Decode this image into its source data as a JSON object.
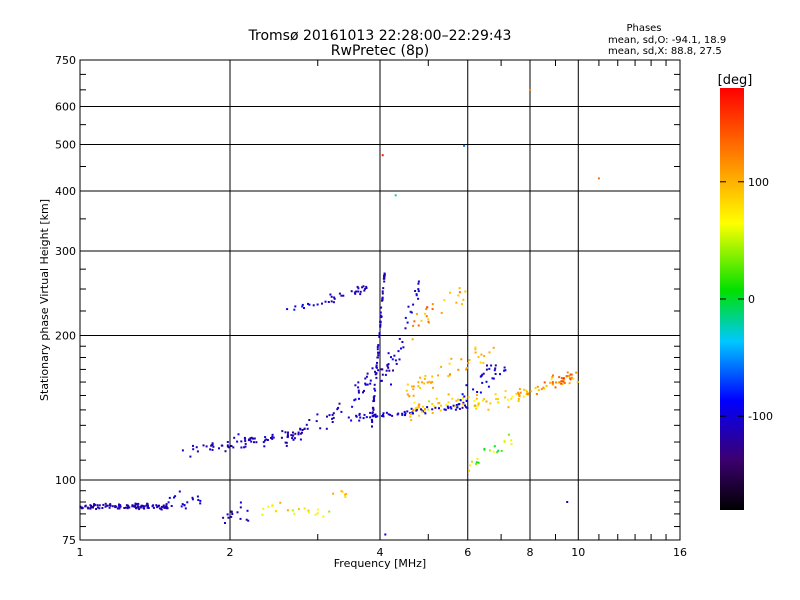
{
  "chart_data": {
    "type": "scatter",
    "title": "Tromsø 20161013 22:28:00–22:29:43",
    "subtitle": "RwPretec (8p)",
    "xlabel": "Frequency [MHz]",
    "ylabel": "Stationary phase Virtual Height [km]",
    "x_scale": "log",
    "y_scale": "log",
    "xlim": [
      1,
      16
    ],
    "ylim": [
      75,
      750
    ],
    "x_ticks": [
      1,
      2,
      4,
      6,
      8,
      10,
      16
    ],
    "x_tick_labels": [
      "1",
      "2",
      "4",
      "6",
      "8",
      "10",
      "16"
    ],
    "y_ticks": [
      75,
      100,
      200,
      300,
      400,
      500,
      600,
      750
    ],
    "y_tick_labels": [
      "75",
      "100",
      "200",
      "300",
      "400",
      "500",
      "600",
      "750"
    ],
    "grid": true,
    "stats": {
      "heading": "Phases",
      "line_o": "mean, sd,O: -94.1, 18.9",
      "line_x": "mean, sd,X:  88.8, 27.5"
    },
    "colorbar": {
      "label": "[deg]",
      "range": [
        -180,
        180
      ],
      "ticks": [
        100,
        0,
        -100
      ],
      "tick_labels": [
        "100",
        "0",
        "-100"
      ]
    },
    "clusters": [
      {
        "f_start": 1.0,
        "f_end": 1.5,
        "h": 88,
        "jitter": 0.012,
        "phase": -115,
        "phase_sd": 10,
        "n": 110
      },
      {
        "f_start": 1.5,
        "f_end": 1.75,
        "h": 90,
        "jitter": 0.03,
        "phase": -100,
        "phase_sd": 15,
        "n": 18
      },
      {
        "f_start": 1.9,
        "f_end": 2.2,
        "h": 86,
        "jitter": 0.04,
        "phase": -110,
        "phase_sd": 15,
        "n": 15
      },
      {
        "f_start": 2.3,
        "f_end": 3.2,
        "h": 87,
        "jitter": 0.035,
        "phase": 80,
        "phase_sd": 40,
        "n": 20
      },
      {
        "f_start": 3.2,
        "f_end": 3.6,
        "h": 93,
        "jitter": 0.02,
        "phase": 90,
        "phase_sd": 25,
        "n": 6
      },
      {
        "f_start": 1.6,
        "f_end": 2.8,
        "h": 115,
        "h_end": 125,
        "jitter": 0.03,
        "phase": -110,
        "phase_sd": 14,
        "n": 75
      },
      {
        "f_start": 2.6,
        "f_end": 3.4,
        "h": 124,
        "h_end": 138,
        "jitter": 0.04,
        "phase": -110,
        "phase_sd": 15,
        "n": 30
      },
      {
        "f_start": 3.4,
        "f_end": 6.0,
        "h": 134,
        "h_end": 143,
        "jitter": 0.015,
        "phase": -105,
        "phase_sd": 14,
        "n": 70
      },
      {
        "f_start": 4.6,
        "f_end": 8.0,
        "h": 140,
        "h_end": 150,
        "jitter": 0.035,
        "phase": 90,
        "phase_sd": 30,
        "n": 70
      },
      {
        "f_start": 7.5,
        "f_end": 10.0,
        "h": 150,
        "h_end": 165,
        "jitter": 0.03,
        "phase": 110,
        "phase_sd": 30,
        "n": 40
      },
      {
        "f_start": 9.0,
        "f_end": 10.3,
        "h": 158,
        "h_end": 172,
        "jitter": 0.02,
        "phase": 140,
        "phase_sd": 20,
        "n": 15
      },
      {
        "f_start": 2.6,
        "f_end": 3.2,
        "h": 228,
        "h_end": 235,
        "jitter": 0.01,
        "phase": -100,
        "phase_sd": 20,
        "n": 12
      },
      {
        "f_start": 3.1,
        "f_end": 3.8,
        "h": 235,
        "h_end": 252,
        "jitter": 0.02,
        "phase": -110,
        "phase_sd": 15,
        "n": 25
      },
      {
        "f_start": 3.85,
        "f_end": 4.1,
        "h": 130,
        "h_end": 280,
        "jitter": 0.03,
        "phase": -110,
        "phase_sd": 15,
        "n": 70
      },
      {
        "f_start": 3.5,
        "f_end": 4.4,
        "h": 150,
        "h_end": 180,
        "jitter": 0.05,
        "phase": -110,
        "phase_sd": 18,
        "n": 40
      },
      {
        "f_start": 4.2,
        "f_end": 4.8,
        "h": 160,
        "h_end": 260,
        "jitter": 0.06,
        "phase": -100,
        "phase_sd": 20,
        "n": 25
      },
      {
        "f_start": 4.5,
        "f_end": 6.8,
        "h": 150,
        "h_end": 190,
        "jitter": 0.05,
        "phase": 100,
        "phase_sd": 20,
        "n": 45
      },
      {
        "f_start": 4.6,
        "f_end": 6.2,
        "h": 210,
        "h_end": 255,
        "jitter": 0.05,
        "phase": 110,
        "phase_sd": 30,
        "n": 25
      },
      {
        "f_start": 5.8,
        "f_end": 7.2,
        "h": 150,
        "h_end": 175,
        "jitter": 0.06,
        "phase": -105,
        "phase_sd": 20,
        "n": 30
      },
      {
        "f_start": 6.0,
        "f_end": 7.5,
        "h": 105,
        "h_end": 125,
        "jitter": 0.05,
        "phase": 30,
        "phase_sd": 50,
        "n": 20
      }
    ],
    "outliers": [
      {
        "f": 4.05,
        "h": 475,
        "phase": 170
      },
      {
        "f": 4.3,
        "h": 392,
        "phase": -20
      },
      {
        "f": 5.9,
        "h": 497,
        "phase": -60
      },
      {
        "f": 8.0,
        "h": 650,
        "phase": 120
      },
      {
        "f": 11.0,
        "h": 425,
        "phase": 130
      },
      {
        "f": 9.5,
        "h": 90,
        "phase": -110
      },
      {
        "f": 4.1,
        "h": 77,
        "phase": -110
      }
    ]
  }
}
